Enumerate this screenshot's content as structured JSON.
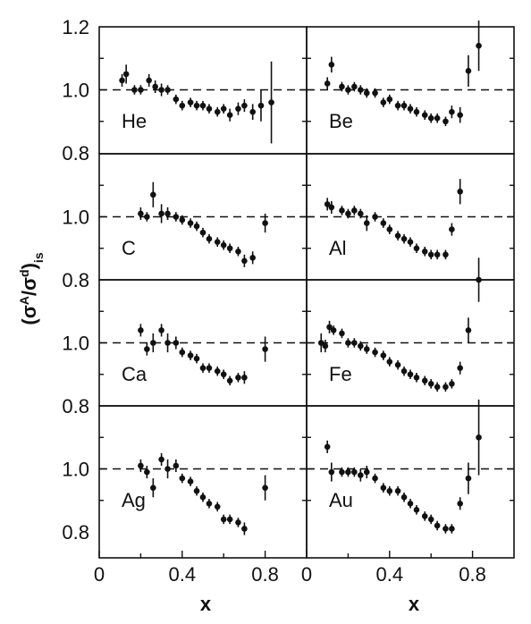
{
  "chart_data": {
    "type": "scatter",
    "layout": "grid 4 rows x 2 columns, shared axes",
    "xlabel": "x",
    "ylabel_parts": {
      "open": "(σ",
      "sup1": "A",
      "slash": "/σ",
      "sup2": "d",
      "close": ")",
      "sub": "is"
    },
    "xlim": [
      0,
      1.0
    ],
    "xticks": [
      0,
      0.4,
      0.8
    ],
    "xtick_labels": [
      "0",
      "0.4",
      "0.8"
    ],
    "ylim": [
      0.8,
      1.2
    ],
    "y_tick_labels_by_row": [
      [
        "1.2",
        "1.0",
        "0.8"
      ],
      [
        "1.0",
        "0.8"
      ],
      [
        "1.0",
        "0.8"
      ],
      [
        "1.0",
        "0.8"
      ]
    ],
    "reference_line": {
      "y": 1.0,
      "style": "dashed"
    },
    "panels": [
      {
        "name": "He",
        "points": [
          [
            0.11,
            1.03,
            0.02
          ],
          [
            0.13,
            1.05,
            0.03
          ],
          [
            0.17,
            1.0,
            0.015
          ],
          [
            0.2,
            1.0,
            0.015
          ],
          [
            0.24,
            1.03,
            0.02
          ],
          [
            0.27,
            1.01,
            0.02
          ],
          [
            0.3,
            1.0,
            0.02
          ],
          [
            0.33,
            1.0,
            0.015
          ],
          [
            0.37,
            0.97,
            0.015
          ],
          [
            0.4,
            0.95,
            0.015
          ],
          [
            0.44,
            0.96,
            0.015
          ],
          [
            0.47,
            0.95,
            0.015
          ],
          [
            0.5,
            0.95,
            0.015
          ],
          [
            0.53,
            0.94,
            0.015
          ],
          [
            0.57,
            0.93,
            0.015
          ],
          [
            0.6,
            0.94,
            0.015
          ],
          [
            0.63,
            0.92,
            0.02
          ],
          [
            0.67,
            0.94,
            0.02
          ],
          [
            0.7,
            0.95,
            0.02
          ],
          [
            0.74,
            0.93,
            0.025
          ],
          [
            0.78,
            0.95,
            0.05
          ],
          [
            0.83,
            0.96,
            0.13
          ]
        ]
      },
      {
        "name": "Be",
        "points": [
          [
            0.1,
            1.02,
            0.02
          ],
          [
            0.12,
            1.08,
            0.025
          ],
          [
            0.17,
            1.01,
            0.015
          ],
          [
            0.2,
            1.0,
            0.015
          ],
          [
            0.23,
            1.01,
            0.015
          ],
          [
            0.26,
            1.0,
            0.015
          ],
          [
            0.29,
            0.99,
            0.015
          ],
          [
            0.33,
            0.99,
            0.015
          ],
          [
            0.37,
            0.96,
            0.015
          ],
          [
            0.4,
            0.97,
            0.015
          ],
          [
            0.44,
            0.95,
            0.015
          ],
          [
            0.47,
            0.95,
            0.015
          ],
          [
            0.5,
            0.94,
            0.015
          ],
          [
            0.53,
            0.93,
            0.015
          ],
          [
            0.57,
            0.92,
            0.015
          ],
          [
            0.6,
            0.91,
            0.015
          ],
          [
            0.63,
            0.91,
            0.015
          ],
          [
            0.67,
            0.9,
            0.015
          ],
          [
            0.7,
            0.93,
            0.02
          ],
          [
            0.74,
            0.92,
            0.025
          ],
          [
            0.78,
            1.06,
            0.05
          ],
          [
            0.83,
            1.14,
            0.08
          ]
        ]
      },
      {
        "name": "C",
        "points": [
          [
            0.2,
            1.01,
            0.02
          ],
          [
            0.23,
            1.0,
            0.015
          ],
          [
            0.26,
            1.07,
            0.04
          ],
          [
            0.3,
            1.01,
            0.03
          ],
          [
            0.33,
            1.01,
            0.02
          ],
          [
            0.37,
            1.0,
            0.015
          ],
          [
            0.4,
            0.99,
            0.015
          ],
          [
            0.44,
            0.98,
            0.015
          ],
          [
            0.47,
            0.97,
            0.015
          ],
          [
            0.5,
            0.95,
            0.015
          ],
          [
            0.53,
            0.93,
            0.015
          ],
          [
            0.57,
            0.92,
            0.015
          ],
          [
            0.6,
            0.91,
            0.015
          ],
          [
            0.63,
            0.9,
            0.015
          ],
          [
            0.67,
            0.89,
            0.015
          ],
          [
            0.7,
            0.86,
            0.02
          ],
          [
            0.74,
            0.87,
            0.02
          ],
          [
            0.8,
            0.98,
            0.03
          ]
        ]
      },
      {
        "name": "Al",
        "points": [
          [
            0.1,
            1.04,
            0.02
          ],
          [
            0.12,
            1.03,
            0.02
          ],
          [
            0.17,
            1.02,
            0.015
          ],
          [
            0.2,
            1.01,
            0.015
          ],
          [
            0.23,
            1.02,
            0.015
          ],
          [
            0.26,
            1.01,
            0.015
          ],
          [
            0.29,
            0.98,
            0.025
          ],
          [
            0.33,
            1.0,
            0.015
          ],
          [
            0.37,
            0.98,
            0.015
          ],
          [
            0.4,
            0.96,
            0.015
          ],
          [
            0.44,
            0.94,
            0.015
          ],
          [
            0.47,
            0.93,
            0.015
          ],
          [
            0.5,
            0.92,
            0.015
          ],
          [
            0.53,
            0.9,
            0.015
          ],
          [
            0.57,
            0.89,
            0.015
          ],
          [
            0.6,
            0.88,
            0.015
          ],
          [
            0.63,
            0.88,
            0.015
          ],
          [
            0.67,
            0.88,
            0.015
          ],
          [
            0.7,
            0.96,
            0.02
          ],
          [
            0.74,
            1.08,
            0.04
          ]
        ]
      },
      {
        "name": "Ca",
        "points": [
          [
            0.2,
            1.04,
            0.02
          ],
          [
            0.23,
            0.98,
            0.02
          ],
          [
            0.26,
            1.0,
            0.03
          ],
          [
            0.3,
            1.04,
            0.02
          ],
          [
            0.33,
            1.0,
            0.03
          ],
          [
            0.37,
            1.0,
            0.02
          ],
          [
            0.4,
            0.97,
            0.015
          ],
          [
            0.44,
            0.96,
            0.015
          ],
          [
            0.47,
            0.95,
            0.015
          ],
          [
            0.5,
            0.92,
            0.015
          ],
          [
            0.53,
            0.92,
            0.015
          ],
          [
            0.57,
            0.91,
            0.015
          ],
          [
            0.6,
            0.9,
            0.015
          ],
          [
            0.63,
            0.88,
            0.015
          ],
          [
            0.67,
            0.89,
            0.015
          ],
          [
            0.7,
            0.89,
            0.02
          ],
          [
            0.8,
            0.98,
            0.04
          ]
        ]
      },
      {
        "name": "Fe",
        "points": [
          [
            0.07,
            1.0,
            0.03
          ],
          [
            0.09,
            0.99,
            0.02
          ],
          [
            0.11,
            1.05,
            0.02
          ],
          [
            0.13,
            1.04,
            0.015
          ],
          [
            0.17,
            1.03,
            0.015
          ],
          [
            0.2,
            1.0,
            0.015
          ],
          [
            0.23,
            1.0,
            0.015
          ],
          [
            0.26,
            0.99,
            0.015
          ],
          [
            0.29,
            0.98,
            0.015
          ],
          [
            0.33,
            0.97,
            0.015
          ],
          [
            0.37,
            0.96,
            0.015
          ],
          [
            0.4,
            0.94,
            0.015
          ],
          [
            0.44,
            0.93,
            0.015
          ],
          [
            0.47,
            0.91,
            0.015
          ],
          [
            0.5,
            0.9,
            0.015
          ],
          [
            0.53,
            0.89,
            0.015
          ],
          [
            0.57,
            0.88,
            0.015
          ],
          [
            0.6,
            0.87,
            0.015
          ],
          [
            0.63,
            0.86,
            0.015
          ],
          [
            0.67,
            0.86,
            0.015
          ],
          [
            0.7,
            0.87,
            0.015
          ],
          [
            0.74,
            0.92,
            0.02
          ],
          [
            0.78,
            1.04,
            0.04
          ],
          [
            0.83,
            1.2,
            0.07
          ]
        ]
      },
      {
        "name": "Ag",
        "points": [
          [
            0.2,
            1.01,
            0.02
          ],
          [
            0.23,
            0.99,
            0.02
          ],
          [
            0.26,
            0.94,
            0.03
          ],
          [
            0.3,
            1.03,
            0.02
          ],
          [
            0.33,
            1.0,
            0.03
          ],
          [
            0.37,
            1.01,
            0.02
          ],
          [
            0.4,
            0.97,
            0.015
          ],
          [
            0.44,
            0.96,
            0.015
          ],
          [
            0.47,
            0.93,
            0.015
          ],
          [
            0.5,
            0.91,
            0.015
          ],
          [
            0.53,
            0.89,
            0.015
          ],
          [
            0.57,
            0.88,
            0.015
          ],
          [
            0.6,
            0.84,
            0.015
          ],
          [
            0.63,
            0.84,
            0.015
          ],
          [
            0.67,
            0.83,
            0.015
          ],
          [
            0.7,
            0.81,
            0.02
          ],
          [
            0.8,
            0.94,
            0.04
          ]
        ]
      },
      {
        "name": "Au",
        "points": [
          [
            0.1,
            1.07,
            0.02
          ],
          [
            0.12,
            0.99,
            0.03
          ],
          [
            0.17,
            0.99,
            0.015
          ],
          [
            0.2,
            0.99,
            0.015
          ],
          [
            0.23,
            0.99,
            0.015
          ],
          [
            0.26,
            0.98,
            0.02
          ],
          [
            0.29,
            0.99,
            0.02
          ],
          [
            0.33,
            0.97,
            0.015
          ],
          [
            0.37,
            0.94,
            0.015
          ],
          [
            0.4,
            0.93,
            0.015
          ],
          [
            0.44,
            0.93,
            0.015
          ],
          [
            0.47,
            0.91,
            0.015
          ],
          [
            0.5,
            0.89,
            0.015
          ],
          [
            0.53,
            0.87,
            0.015
          ],
          [
            0.57,
            0.85,
            0.015
          ],
          [
            0.6,
            0.84,
            0.015
          ],
          [
            0.63,
            0.82,
            0.015
          ],
          [
            0.67,
            0.81,
            0.015
          ],
          [
            0.7,
            0.81,
            0.015
          ],
          [
            0.74,
            0.89,
            0.02
          ],
          [
            0.78,
            0.97,
            0.05
          ],
          [
            0.83,
            1.1,
            0.12
          ]
        ]
      }
    ]
  }
}
